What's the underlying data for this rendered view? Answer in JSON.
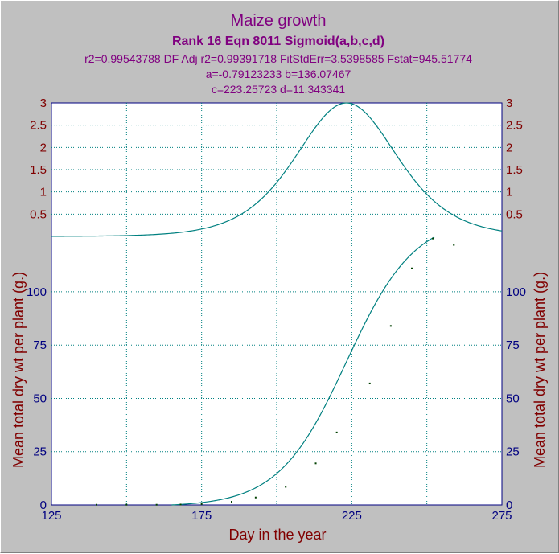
{
  "chart_data": {
    "type": "scatter",
    "title": "Maize growth",
    "subtitle": "Rank 16  Eqn 8011  Sigmoid(a,b,c,d)",
    "stats_line1": "r2=0.99543788  DF Adj r2=0.99391718  FitStdErr=3.5398585  Fstat=945.51774",
    "stats_line2": "a=-0.79123233 b=136.07467",
    "stats_line3": "c=223.25723 d=11.343341",
    "xlabel": "Day in the year",
    "ylabel": "Mean total dry wt per plant (g.)",
    "ylabel_right": "Mean total dry wt per plant (g.)",
    "xlim": [
      125,
      275
    ],
    "ylim": [
      0,
      126
    ],
    "x_ticks": [
      "125",
      "175",
      "225",
      "275"
    ],
    "y_ticks": [
      "0",
      "25",
      "50",
      "75",
      "100"
    ],
    "upper_panel": {
      "description_of_scale": "derivative of fit",
      "ylim": [
        0,
        3
      ],
      "y_ticks": [
        "0.5",
        "1",
        "1.5",
        "2",
        "2.5",
        "3"
      ],
      "y_tick_values": [
        0.5,
        1,
        1.5,
        2,
        2.5,
        3
      ]
    },
    "fit": {
      "a": -0.79123233,
      "b": 136.07467,
      "c": 223.25723,
      "d": 11.343341
    },
    "series": [
      {
        "type": "points",
        "x": [
          140,
          150,
          160,
          168,
          175,
          185,
          193,
          203,
          213,
          220,
          231,
          238,
          245,
          252,
          259
        ],
        "y": [
          0.1,
          0.1,
          0.1,
          0.2,
          0.4,
          1.5,
          3.5,
          8.5,
          19.5,
          34,
          57,
          84,
          111,
          125,
          122
        ]
      }
    ],
    "grid": true,
    "colors": {
      "background": "#c0c0c0",
      "plot_bg": "#ffffff",
      "grid": "#008080",
      "curve": "#008080",
      "points": "#004000",
      "title": "#800080",
      "axis_label": "#800000",
      "tick_blue": "#000080",
      "tick_red": "#800000"
    }
  }
}
